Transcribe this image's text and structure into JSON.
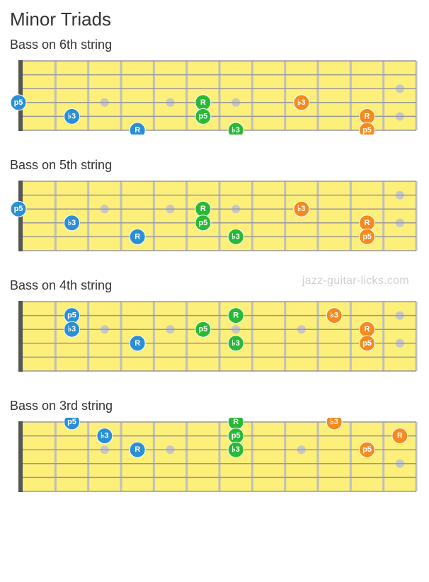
{
  "title": "Minor Triads",
  "watermark": "jazz-guitar-licks.com",
  "layout": {
    "numStrings": 6,
    "numFrets": 12,
    "fbWidth": 578,
    "fbHeight": 110,
    "nutWidth": 6,
    "fretColor": "#bfbfbf",
    "stringColor": "#999999",
    "boardFill": "#fcef7a",
    "bgColor": "#ffffff",
    "fretMarkerColor": "#c7c7c7",
    "fretMarkerRadius": 6,
    "noteRadius": 11,
    "noteFontSize": 11,
    "noteFontWeight": "bold",
    "noteTextColor": "#ffffff"
  },
  "fretMarkers": {
    "single": [
      3,
      5,
      7,
      9
    ],
    "double": [
      12
    ]
  },
  "colors": {
    "blue": "#2b8fd6",
    "green": "#2ab936",
    "orange": "#f58a1f"
  },
  "diagrams": [
    {
      "title": "Bass   on 6th string",
      "markerString": 4,
      "notes": [
        {
          "fret": 0,
          "string": 4,
          "label": "p5",
          "color": "blue"
        },
        {
          "fret": 2,
          "string": 5,
          "label": "b3",
          "color": "blue"
        },
        {
          "fret": 4,
          "string": 6,
          "label": "R",
          "color": "blue"
        },
        {
          "fret": 6,
          "string": 4,
          "label": "R",
          "color": "green"
        },
        {
          "fret": 6,
          "string": 5,
          "label": "p5",
          "color": "green"
        },
        {
          "fret": 7,
          "string": 6,
          "label": "b3",
          "color": "green"
        },
        {
          "fret": 9,
          "string": 4,
          "label": "b3",
          "color": "orange"
        },
        {
          "fret": 11,
          "string": 5,
          "label": "R",
          "color": "orange"
        },
        {
          "fret": 11,
          "string": 6,
          "label": "p5",
          "color": "orange"
        }
      ]
    },
    {
      "title": "Bass   on 5th string",
      "markerString": 3,
      "notes": [
        {
          "fret": 0,
          "string": 3,
          "label": "p5",
          "color": "blue"
        },
        {
          "fret": 2,
          "string": 4,
          "label": "b3",
          "color": "blue"
        },
        {
          "fret": 4,
          "string": 5,
          "label": "R",
          "color": "blue"
        },
        {
          "fret": 6,
          "string": 3,
          "label": "R",
          "color": "green"
        },
        {
          "fret": 6,
          "string": 4,
          "label": "p5",
          "color": "green"
        },
        {
          "fret": 7,
          "string": 5,
          "label": "b3",
          "color": "green"
        },
        {
          "fret": 9,
          "string": 3,
          "label": "b3",
          "color": "orange"
        },
        {
          "fret": 11,
          "string": 4,
          "label": "R",
          "color": "orange"
        },
        {
          "fret": 11,
          "string": 5,
          "label": "p5",
          "color": "orange"
        }
      ]
    },
    {
      "title": "Bass   on 4th string",
      "markerString": 3,
      "notes": [
        {
          "fret": 2,
          "string": 2,
          "label": "p5",
          "color": "blue"
        },
        {
          "fret": 2,
          "string": 3,
          "label": "b3",
          "color": "blue"
        },
        {
          "fret": 4,
          "string": 4,
          "label": "R",
          "color": "blue"
        },
        {
          "fret": 7,
          "string": 2,
          "label": "R",
          "color": "green"
        },
        {
          "fret": 6,
          "string": 3,
          "label": "p5",
          "color": "green"
        },
        {
          "fret": 7,
          "string": 4,
          "label": "b3",
          "color": "green"
        },
        {
          "fret": 10,
          "string": 2,
          "label": "b3",
          "color": "orange"
        },
        {
          "fret": 11,
          "string": 3,
          "label": "R",
          "color": "orange"
        },
        {
          "fret": 11,
          "string": 4,
          "label": "p5",
          "color": "orange"
        }
      ]
    },
    {
      "title": "Bass   on 3rd string",
      "markerString": 3,
      "notes": [
        {
          "fret": 2,
          "string": 1,
          "label": "p5",
          "color": "blue"
        },
        {
          "fret": 3,
          "string": 2,
          "label": "b3",
          "color": "blue"
        },
        {
          "fret": 4,
          "string": 3,
          "label": "R",
          "color": "blue"
        },
        {
          "fret": 7,
          "string": 1,
          "label": "R",
          "color": "green"
        },
        {
          "fret": 7,
          "string": 2,
          "label": "p5",
          "color": "green"
        },
        {
          "fret": 7,
          "string": 3,
          "label": "b3",
          "color": "green"
        },
        {
          "fret": 10,
          "string": 1,
          "label": "b3",
          "color": "orange"
        },
        {
          "fret": 12,
          "string": 2,
          "label": "R",
          "color": "orange"
        },
        {
          "fret": 11,
          "string": 3,
          "label": "p5",
          "color": "orange"
        }
      ]
    }
  ]
}
